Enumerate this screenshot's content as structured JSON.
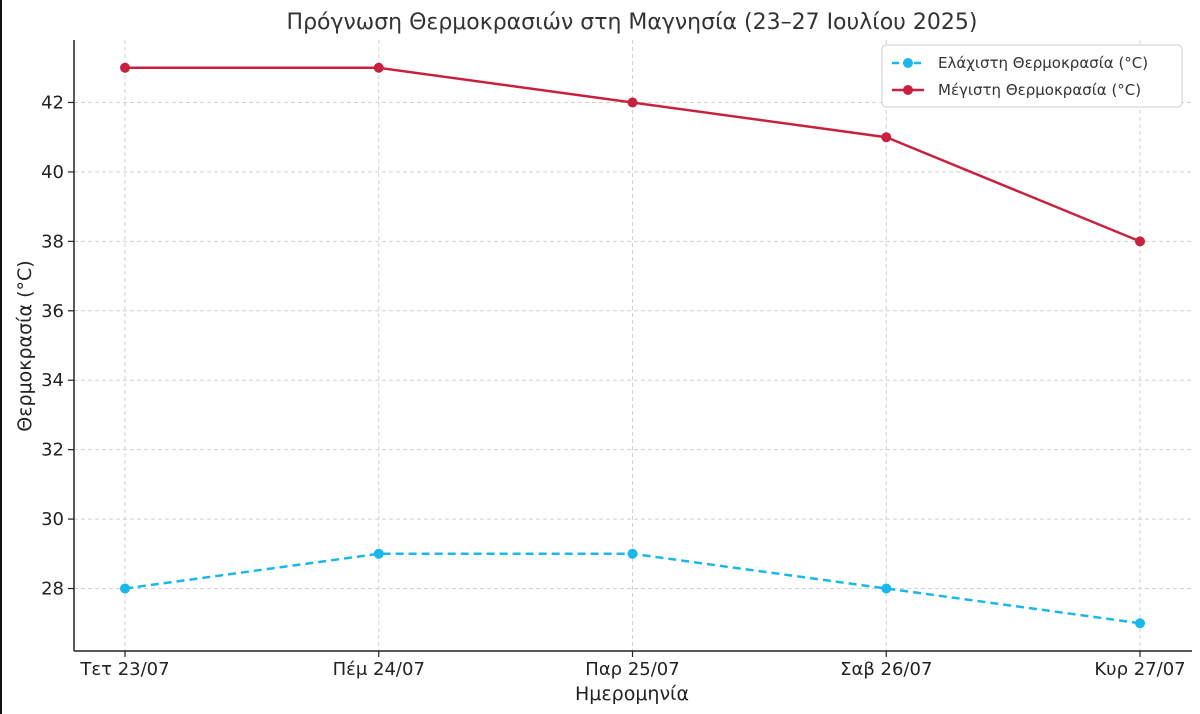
{
  "chart_data": {
    "type": "line",
    "title": "Πρόγνωση Θερμοκρασιών στη Μαγνησία (23–27 Ιουλίου 2025)",
    "xlabel": "Ημερομηνία",
    "ylabel": "Θερμοκρασία (°C)",
    "categories": [
      "Τετ 23/07",
      "Πέμ 24/07",
      "Παρ 25/07",
      "Σαβ 26/07",
      "Κυρ 27/07"
    ],
    "yticks": [
      28,
      30,
      32,
      34,
      36,
      38,
      40,
      42
    ],
    "ylim": [
      26.2,
      43.8
    ],
    "grid": true,
    "legend_position": "top-right",
    "series": [
      {
        "name": "Ελάχιστη Θερμοκρασία (°C)",
        "values": [
          28,
          29,
          29,
          28,
          27
        ],
        "color": "#1ab8e8",
        "style": "dashed"
      },
      {
        "name": "Μέγιστη Θερμοκρασία (°C)",
        "values": [
          43,
          43,
          42,
          41,
          38
        ],
        "color": "#c8213f",
        "style": "solid"
      }
    ]
  }
}
